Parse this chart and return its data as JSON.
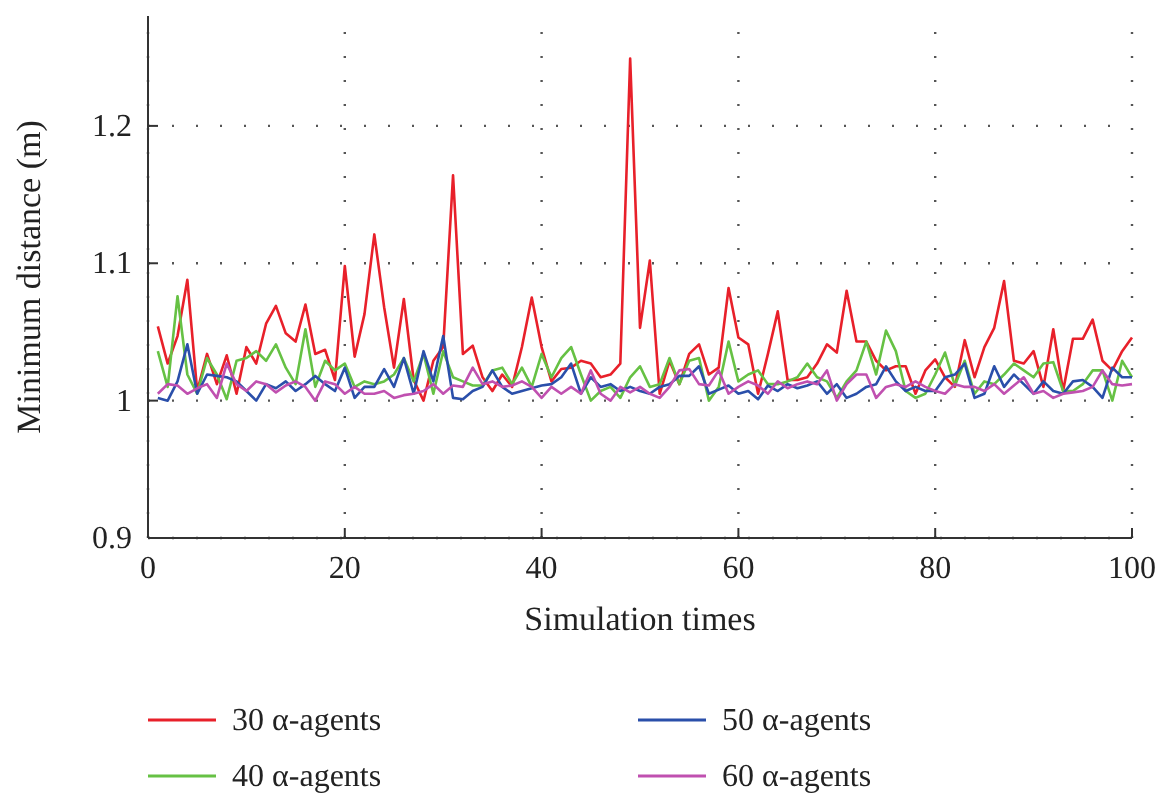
{
  "chart_data": {
    "type": "line",
    "xlabel": "Simulation times",
    "ylabel": "Minimum distance (m)",
    "xlim": [
      0,
      100
    ],
    "xticks": [
      0,
      20,
      40,
      60,
      80,
      100
    ],
    "ylim": [
      0.9,
      1.28
    ],
    "yticks": [
      0.9,
      1,
      1.1,
      1.2
    ],
    "grid": true,
    "legend": "bottom",
    "marker": "none",
    "line_style": "solid",
    "x": [
      1,
      2,
      3,
      4,
      5,
      6,
      7,
      8,
      9,
      10,
      11,
      12,
      13,
      14,
      15,
      16,
      17,
      18,
      19,
      20,
      21,
      22,
      23,
      24,
      25,
      26,
      27,
      28,
      29,
      30,
      31,
      32,
      33,
      34,
      35,
      36,
      37,
      38,
      39,
      40,
      41,
      42,
      43,
      44,
      45,
      46,
      47,
      48,
      49,
      50,
      51,
      52,
      53,
      54,
      55,
      56,
      57,
      58,
      59,
      60,
      61,
      62,
      63,
      64,
      65,
      66,
      67,
      68,
      69,
      70,
      71,
      72,
      73,
      74,
      75,
      76,
      77,
      78,
      79,
      80,
      81,
      82,
      83,
      84,
      85,
      86,
      87,
      88,
      89,
      90,
      91,
      92,
      93,
      94,
      95,
      96,
      97,
      98,
      99,
      100
    ],
    "series": [
      {
        "name": "30 α-agents",
        "color": "#e8202a",
        "values": [
          1.054,
          1.027,
          1.047,
          1.088,
          1.007,
          1.034,
          1.012,
          1.033,
          1.005,
          1.039,
          1.027,
          1.056,
          1.069,
          1.049,
          1.043,
          1.07,
          1.034,
          1.037,
          1.015,
          1.098,
          1.032,
          1.063,
          1.121,
          1.068,
          1.024,
          1.074,
          1.015,
          1.0,
          1.029,
          1.039,
          1.164,
          1.034,
          1.04,
          1.017,
          1.007,
          1.019,
          1.01,
          1.039,
          1.075,
          1.039,
          1.014,
          1.023,
          1.024,
          1.029,
          1.027,
          1.017,
          1.019,
          1.027,
          1.249,
          1.053,
          1.102,
          1.005,
          1.029,
          1.012,
          1.034,
          1.041,
          1.019,
          1.024,
          1.082,
          1.046,
          1.041,
          1.005,
          1.034,
          1.065,
          1.015,
          1.015,
          1.017,
          1.027,
          1.041,
          1.035,
          1.08,
          1.043,
          1.043,
          1.029,
          1.022,
          1.025,
          1.025,
          1.005,
          1.022,
          1.03,
          1.017,
          1.01,
          1.044,
          1.017,
          1.039,
          1.053,
          1.087,
          1.029,
          1.027,
          1.036,
          1.01,
          1.052,
          1.007,
          1.045,
          1.045,
          1.059,
          1.029,
          1.022,
          1.036,
          1.046
        ]
      },
      {
        "name": "40 α-agents",
        "color": "#66c144",
        "values": [
          1.036,
          1.01,
          1.076,
          1.019,
          1.005,
          1.031,
          1.019,
          1.001,
          1.029,
          1.031,
          1.036,
          1.029,
          1.041,
          1.024,
          1.012,
          1.052,
          1.01,
          1.029,
          1.022,
          1.027,
          1.01,
          1.014,
          1.012,
          1.014,
          1.019,
          1.031,
          1.014,
          1.034,
          1.005,
          1.036,
          1.017,
          1.014,
          1.011,
          1.011,
          1.022,
          1.024,
          1.012,
          1.024,
          1.01,
          1.034,
          1.017,
          1.031,
          1.039,
          1.019,
          1.0,
          1.007,
          1.01,
          1.002,
          1.017,
          1.025,
          1.01,
          1.012,
          1.031,
          1.012,
          1.029,
          1.031,
          1.0,
          1.01,
          1.043,
          1.014,
          1.019,
          1.022,
          1.012,
          1.012,
          1.014,
          1.017,
          1.027,
          1.017,
          1.014,
          1.002,
          1.014,
          1.022,
          1.043,
          1.019,
          1.051,
          1.036,
          1.007,
          1.002,
          1.005,
          1.019,
          1.035,
          1.011,
          1.029,
          1.005,
          1.014,
          1.012,
          1.019,
          1.027,
          1.022,
          1.017,
          1.027,
          1.028,
          1.007,
          1.007,
          1.012,
          1.022,
          1.022,
          1.0,
          1.029,
          1.017
        ]
      },
      {
        "name": "50 α-agents",
        "color": "#2a4faa",
        "values": [
          1.002,
          1.0,
          1.014,
          1.041,
          1.005,
          1.019,
          1.018,
          1.017,
          1.014,
          1.007,
          1.0,
          1.012,
          1.009,
          1.014,
          1.007,
          1.012,
          1.018,
          1.012,
          1.007,
          1.024,
          1.002,
          1.01,
          1.01,
          1.023,
          1.01,
          1.031,
          1.005,
          1.036,
          1.014,
          1.047,
          1.002,
          1.001,
          1.007,
          1.01,
          1.022,
          1.01,
          1.005,
          1.007,
          1.009,
          1.011,
          1.012,
          1.017,
          1.027,
          1.005,
          1.017,
          1.01,
          1.012,
          1.007,
          1.01,
          1.007,
          1.005,
          1.01,
          1.012,
          1.018,
          1.018,
          1.025,
          1.005,
          1.008,
          1.011,
          1.005,
          1.007,
          1.001,
          1.011,
          1.007,
          1.012,
          1.009,
          1.011,
          1.014,
          1.005,
          1.012,
          1.002,
          1.005,
          1.01,
          1.012,
          1.025,
          1.014,
          1.007,
          1.01,
          1.007,
          1.007,
          1.017,
          1.019,
          1.027,
          1.002,
          1.005,
          1.025,
          1.01,
          1.019,
          1.012,
          1.005,
          1.014,
          1.007,
          1.005,
          1.014,
          1.015,
          1.01,
          1.002,
          1.024,
          1.017,
          1.017
        ]
      },
      {
        "name": "60 α-agents",
        "color": "#c050b0",
        "values": [
          1.005,
          1.012,
          1.011,
          1.005,
          1.009,
          1.012,
          1.002,
          1.027,
          1.012,
          1.007,
          1.014,
          1.012,
          1.006,
          1.011,
          1.014,
          1.01,
          1.0,
          1.014,
          1.012,
          1.005,
          1.01,
          1.005,
          1.005,
          1.007,
          1.002,
          1.004,
          1.005,
          1.007,
          1.012,
          1.005,
          1.011,
          1.01,
          1.024,
          1.012,
          1.014,
          1.01,
          1.011,
          1.014,
          1.01,
          1.002,
          1.01,
          1.005,
          1.01,
          1.005,
          1.022,
          1.005,
          1.0,
          1.01,
          1.006,
          1.01,
          1.005,
          1.002,
          1.01,
          1.022,
          1.023,
          1.012,
          1.011,
          1.022,
          1.005,
          1.01,
          1.014,
          1.011,
          1.005,
          1.014,
          1.009,
          1.012,
          1.014,
          1.012,
          1.022,
          1.0,
          1.012,
          1.019,
          1.019,
          1.002,
          1.01,
          1.012,
          1.01,
          1.014,
          1.01,
          1.007,
          1.005,
          1.012,
          1.01,
          1.01,
          1.007,
          1.012,
          1.005,
          1.011,
          1.017,
          1.005,
          1.007,
          1.002,
          1.005,
          1.006,
          1.007,
          1.01,
          1.022,
          1.012,
          1.011,
          1.012
        ]
      }
    ]
  }
}
